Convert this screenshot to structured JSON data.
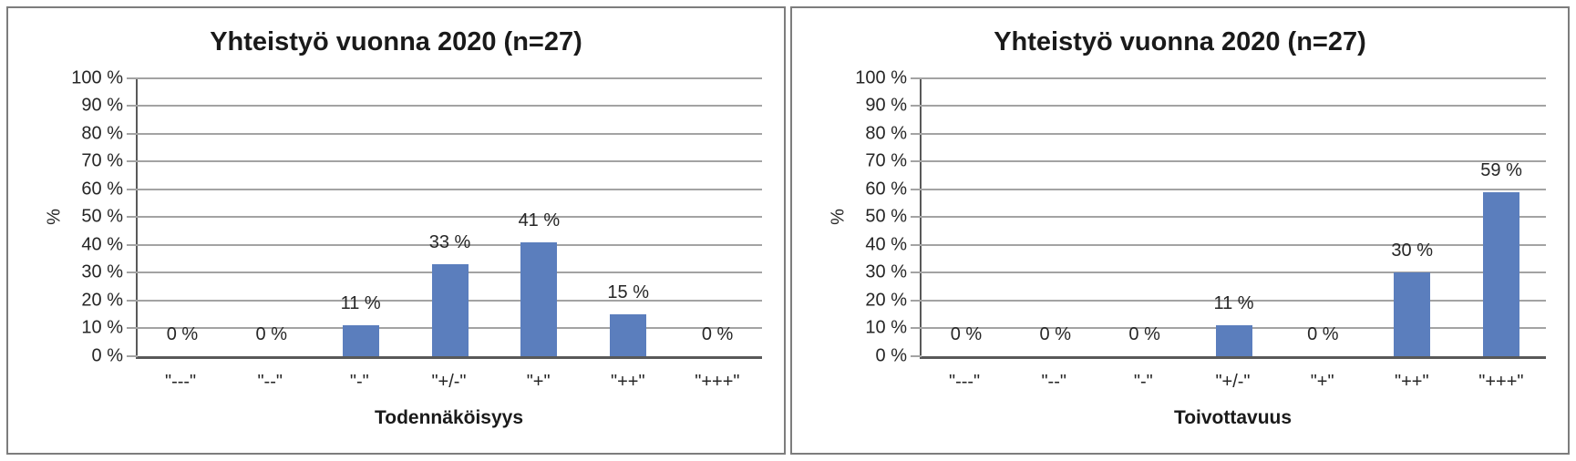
{
  "chart_data": [
    {
      "type": "bar",
      "title": "Yhteistyö vuonna 2020 (n=27)",
      "xlabel": "Todennäköisyys",
      "ylabel": "%",
      "categories": [
        "\"---\"",
        "\"--\"",
        "\"-\"",
        "\"+/-\"",
        "\"+\"",
        "\"++\"",
        "\"+++\""
      ],
      "values": [
        0,
        0,
        11,
        33,
        41,
        15,
        0
      ],
      "bar_labels": [
        "0 %",
        "0 %",
        "11 %",
        "33 %",
        "41 %",
        "15 %",
        "0 %"
      ],
      "y_ticks": [
        "100 %",
        "90 %",
        "80 %",
        "70 %",
        "60 %",
        "50 %",
        "40 %",
        "30 %",
        "20 %",
        "10 %",
        "0 %"
      ],
      "ylim": [
        0,
        100
      ],
      "grid": true,
      "legend": false
    },
    {
      "type": "bar",
      "title": "Yhteistyö vuonna 2020 (n=27)",
      "xlabel": "Toivottavuus",
      "ylabel": "%",
      "categories": [
        "\"---\"",
        "\"--\"",
        "\"-\"",
        "\"+/-\"",
        "\"+\"",
        "\"++\"",
        "\"+++\""
      ],
      "values": [
        0,
        0,
        0,
        11,
        0,
        30,
        59
      ],
      "bar_labels": [
        "0 %",
        "0 %",
        "0 %",
        "11 %",
        "0 %",
        "30 %",
        "59 %"
      ],
      "y_ticks": [
        "100 %",
        "90 %",
        "80 %",
        "70 %",
        "60 %",
        "50 %",
        "40 %",
        "30 %",
        "20 %",
        "10 %",
        "0 %"
      ],
      "ylim": [
        0,
        100
      ],
      "grid": true,
      "legend": false
    }
  ],
  "colors": {
    "bar": "#5b7ebd",
    "gridline": "#a3a3a3",
    "axis": "#595959",
    "panel_border": "#7d7d7d",
    "text": "#262626"
  }
}
